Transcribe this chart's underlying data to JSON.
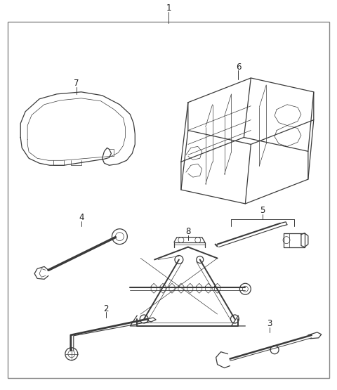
{
  "background_color": "#ffffff",
  "line_color": "#3a3a3a",
  "label_color": "#1a1a1a",
  "fig_width": 4.8,
  "fig_height": 5.55,
  "dpi": 100
}
